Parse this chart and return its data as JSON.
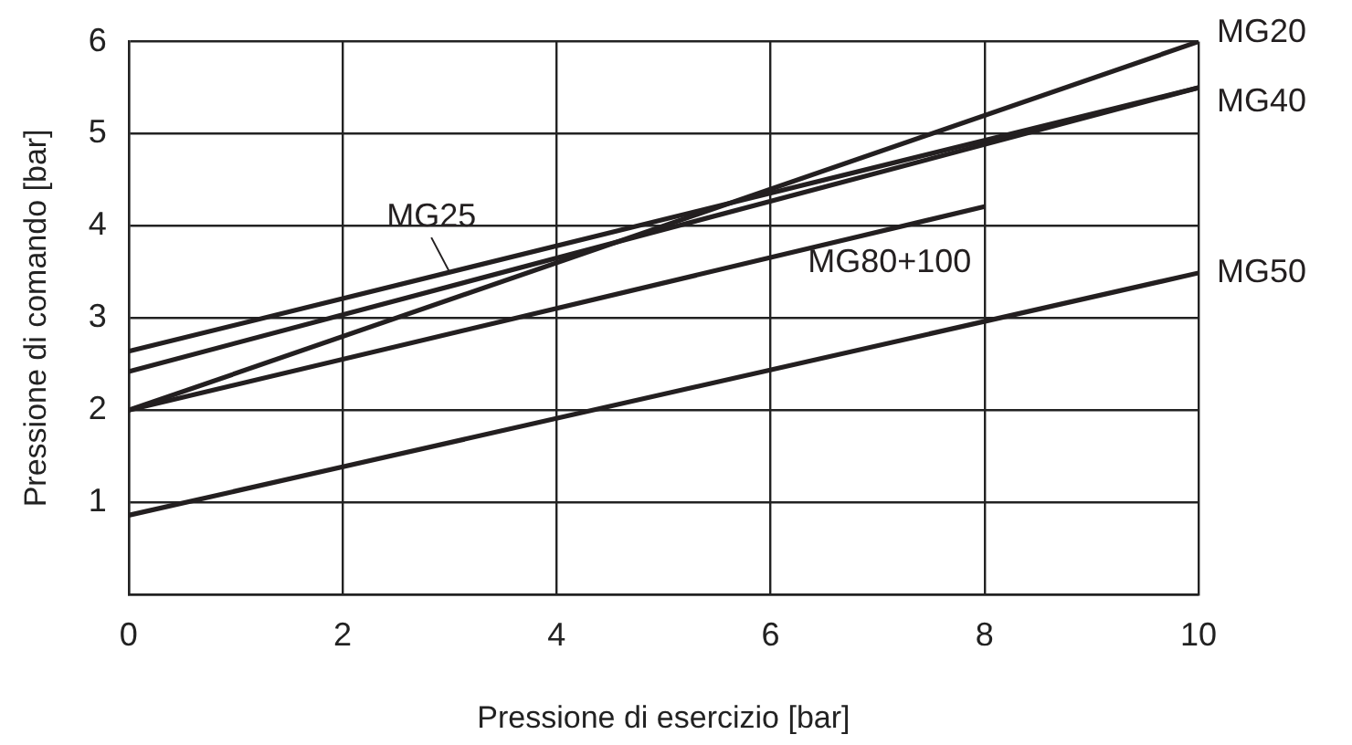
{
  "chart_data": {
    "type": "line",
    "xlabel": "Pressione di esercizio [bar]",
    "ylabel": "Pressione di comando [bar]",
    "xlim": [
      0,
      10
    ],
    "ylim": [
      0,
      6
    ],
    "xticks": [
      0,
      2,
      4,
      6,
      8,
      10
    ],
    "yticks": [
      {
        "value": 0,
        "label": null
      },
      1,
      2,
      3,
      4,
      5,
      6
    ],
    "grid": true,
    "legend": false,
    "marker": "none",
    "line_style": "solid",
    "series": [
      {
        "name": "MG25",
        "color": "#231f20",
        "x": [
          0,
          10
        ],
        "values": [
          2.64,
          5.5
        ]
      },
      {
        "name": "MG20",
        "color": "#231f20",
        "x": [
          0,
          10
        ],
        "values": [
          2,
          6
        ]
      },
      {
        "name": "MG40",
        "color": "#231f20",
        "x": [
          0,
          10
        ],
        "values": [
          2.42,
          5.5
        ]
      },
      {
        "name": "MG80+100",
        "color": "#231f20",
        "x": [
          0,
          8
        ],
        "values": [
          2,
          4.21
        ]
      },
      {
        "name": "MG50",
        "color": "#231f20",
        "x": [
          0,
          10
        ],
        "values": [
          0.86,
          3.49
        ]
      }
    ]
  }
}
